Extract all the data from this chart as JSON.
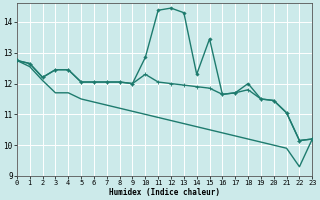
{
  "xlabel": "Humidex (Indice chaleur)",
  "bg_color": "#cceaea",
  "grid_color": "#ffffff",
  "line_color": "#1e7b6e",
  "xlim": [
    0,
    23
  ],
  "ylim": [
    9,
    14.6
  ],
  "xticks": [
    0,
    1,
    2,
    3,
    4,
    5,
    6,
    7,
    8,
    9,
    10,
    11,
    12,
    13,
    14,
    15,
    16,
    17,
    18,
    19,
    20,
    21,
    22,
    23
  ],
  "yticks": [
    9,
    10,
    11,
    12,
    13,
    14
  ],
  "line1_x": [
    0,
    1,
    2,
    3,
    4,
    5,
    6,
    7,
    8,
    9,
    10,
    11,
    12,
    13,
    14,
    15,
    16,
    17,
    18,
    19,
    20,
    21,
    22,
    23
  ],
  "line1_y": [
    12.75,
    12.65,
    12.2,
    12.45,
    12.45,
    12.05,
    12.05,
    12.05,
    12.05,
    12.0,
    12.85,
    14.38,
    14.45,
    14.3,
    12.3,
    13.45,
    11.65,
    11.7,
    12.0,
    11.5,
    11.45,
    11.05,
    10.15,
    10.2
  ],
  "line2_x": [
    0,
    1,
    2,
    3,
    4,
    5,
    6,
    7,
    8,
    9,
    10,
    11,
    12,
    13,
    14,
    15,
    16,
    17,
    18,
    19,
    20,
    21,
    22,
    23
  ],
  "line2_y": [
    12.75,
    12.65,
    12.2,
    12.45,
    12.45,
    12.05,
    12.05,
    12.05,
    12.05,
    12.0,
    12.3,
    12.05,
    12.0,
    11.95,
    11.9,
    11.85,
    11.65,
    11.7,
    11.8,
    11.5,
    11.45,
    11.05,
    10.15,
    10.2
  ],
  "line3_x": [
    0,
    1,
    2,
    3,
    4,
    5,
    6,
    7,
    8,
    9,
    10,
    11,
    12,
    13,
    14,
    15,
    16,
    17,
    18,
    19,
    20,
    21,
    22,
    23
  ],
  "line3_y": [
    12.75,
    12.55,
    12.1,
    11.7,
    11.7,
    11.5,
    11.4,
    11.3,
    11.2,
    11.1,
    11.0,
    10.9,
    10.8,
    10.7,
    10.6,
    10.5,
    10.4,
    10.3,
    10.2,
    10.1,
    10.0,
    9.9,
    9.3,
    10.2
  ]
}
